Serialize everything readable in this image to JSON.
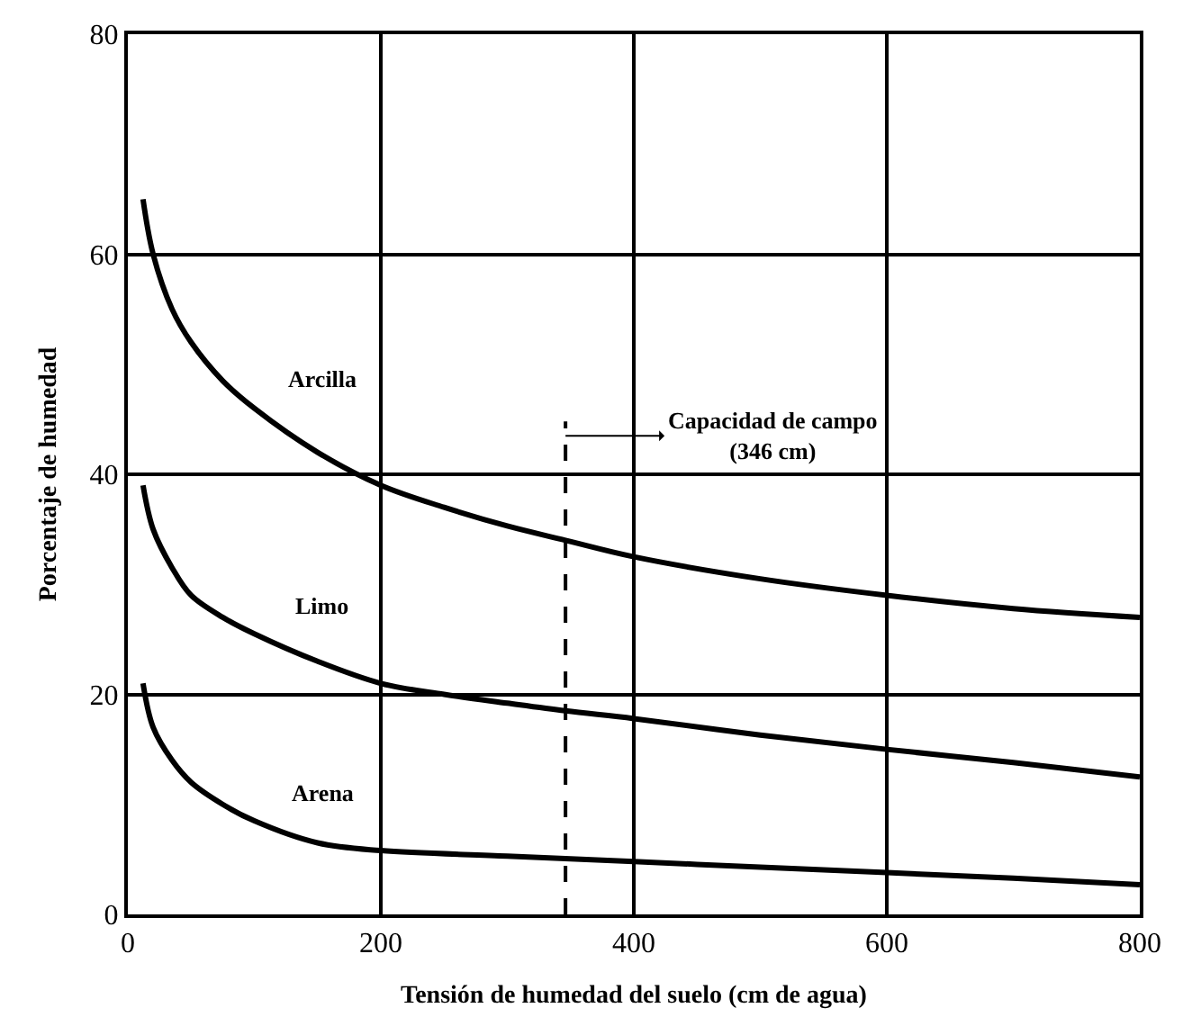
{
  "chart_data": {
    "type": "line",
    "xlabel": "Tensión de humedad del suelo (cm de agua)",
    "ylabel": "Porcentaje de humedad",
    "xlim": [
      0,
      800
    ],
    "xticks": [
      0,
      200,
      400,
      600,
      800
    ],
    "ylim": [
      0,
      80
    ],
    "yticks": [
      0,
      20,
      40,
      60,
      80
    ],
    "grid": true,
    "legend": false,
    "marker": "none",
    "line_style": "solid",
    "series": [
      {
        "name": "Arcilla",
        "color": "#000000",
        "x": [
          12,
          20,
          35,
          50,
          75,
          100,
          150,
          200,
          250,
          300,
          346,
          400,
          500,
          600,
          700,
          800
        ],
        "values": [
          65,
          60,
          55,
          52,
          48.5,
          46,
          42,
          39,
          37,
          35.3,
          34,
          32.5,
          30.5,
          29,
          27.8,
          27
        ]
      },
      {
        "name": "Limo",
        "color": "#000000",
        "x": [
          12,
          20,
          35,
          50,
          75,
          100,
          150,
          200,
          250,
          300,
          346,
          400,
          500,
          600,
          700,
          800
        ],
        "values": [
          39,
          35,
          31.5,
          29,
          27,
          25.5,
          23,
          21,
          20,
          19.2,
          18.5,
          17.8,
          16.3,
          15,
          13.8,
          12.5
        ]
      },
      {
        "name": "Arena",
        "color": "#000000",
        "x": [
          12,
          20,
          35,
          50,
          75,
          100,
          150,
          200,
          300,
          400,
          500,
          600,
          700,
          800
        ],
        "values": [
          21,
          17,
          14,
          12,
          10,
          8.5,
          6.5,
          5.8,
          5.3,
          4.8,
          4.3,
          3.8,
          3.3,
          2.7
        ]
      }
    ],
    "ref_lines": [
      {
        "axis": "x",
        "value": 346,
        "label": "Capacidad de campo\n(346 cm)",
        "color": "#000000",
        "line_style": "dashed"
      }
    ]
  }
}
